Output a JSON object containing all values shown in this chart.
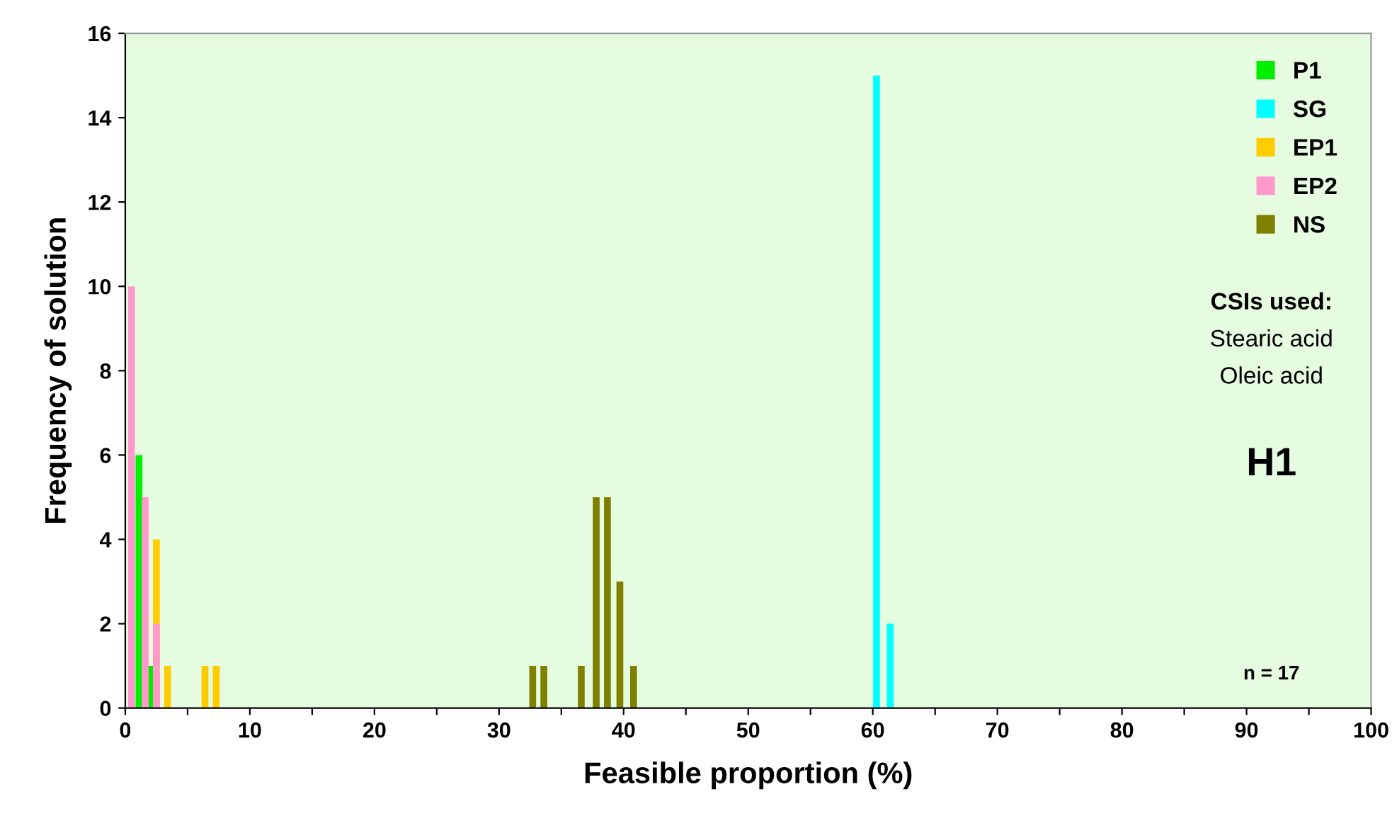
{
  "chart_data": {
    "type": "bar",
    "xlabel": "Feasible proportion (%)",
    "ylabel": "Frequency of solution",
    "series": [
      {
        "name": "P1",
        "color": "#00ee00",
        "x": [
          1.1,
          2.0
        ],
        "values": [
          6,
          1
        ]
      },
      {
        "name": "SG",
        "color": "#00ffff",
        "x": [
          60.3,
          61.4
        ],
        "values": [
          15,
          2
        ]
      },
      {
        "name": "EP1",
        "color": "#ffcc00",
        "x": [
          2.5,
          3.4,
          6.4,
          7.3
        ],
        "values": [
          4,
          1,
          1,
          1
        ]
      },
      {
        "name": "EP2",
        "color": "#ff99cc",
        "x": [
          0.5,
          1.6,
          2.5
        ],
        "values": [
          10,
          5,
          2
        ]
      },
      {
        "name": "NS",
        "color": "#808000",
        "x": [
          32.7,
          33.6,
          36.6,
          37.8,
          38.7,
          39.7,
          40.8
        ],
        "values": [
          1,
          1,
          1,
          5,
          5,
          3,
          1
        ]
      }
    ],
    "xlim": [
      0,
      100
    ],
    "ylim": [
      0,
      16
    ],
    "xticks": [
      0,
      {
        "value": 5,
        "label": null
      },
      10,
      {
        "value": 15,
        "label": null
      },
      20,
      {
        "value": 25,
        "label": null
      },
      30,
      {
        "value": 35,
        "label": null
      },
      40,
      {
        "value": 45,
        "label": null
      },
      50,
      {
        "value": 55,
        "label": null
      },
      60,
      {
        "value": 65,
        "label": null
      },
      70,
      {
        "value": 75,
        "label": null
      },
      80,
      {
        "value": 85,
        "label": null
      },
      90,
      {
        "value": 95,
        "label": null
      },
      100
    ],
    "yticks": [
      0,
      2,
      4,
      6,
      8,
      10,
      12,
      14,
      16
    ],
    "grid": false,
    "legend": "top right",
    "annotations": [
      "CSIs used:",
      "Stearic acid",
      "Oleic acid",
      "H1",
      "n = 17"
    ]
  }
}
